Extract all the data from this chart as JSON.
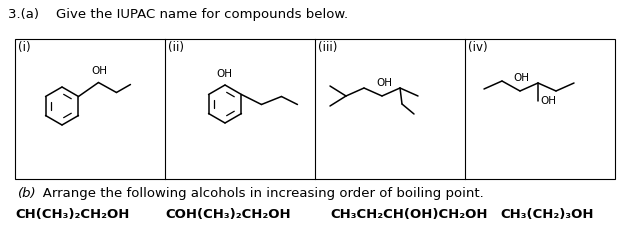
{
  "title_text": "3.(a)    Give the IUPAC name for compounds below.",
  "part_b_label": "(b)",
  "part_b_text": "   Arrange the following alcohols in increasing order of boiling point.",
  "box_labels": [
    "(i)",
    "(ii)",
    "(iii)",
    "(iv)"
  ],
  "alcohols": [
    "CH(CH₃)₂CH₂OH",
    "COH(CH₃)₂CH₂OH",
    "CH₃CH₂CH(OH)CH₂OH",
    "CH₃(CH₂)₃OH"
  ],
  "bg_color": "#ffffff",
  "text_color": "#000000",
  "box_color": "#000000",
  "font_size_title": 9.5,
  "font_size_label": 8.5,
  "font_size_alcohol": 9.5
}
